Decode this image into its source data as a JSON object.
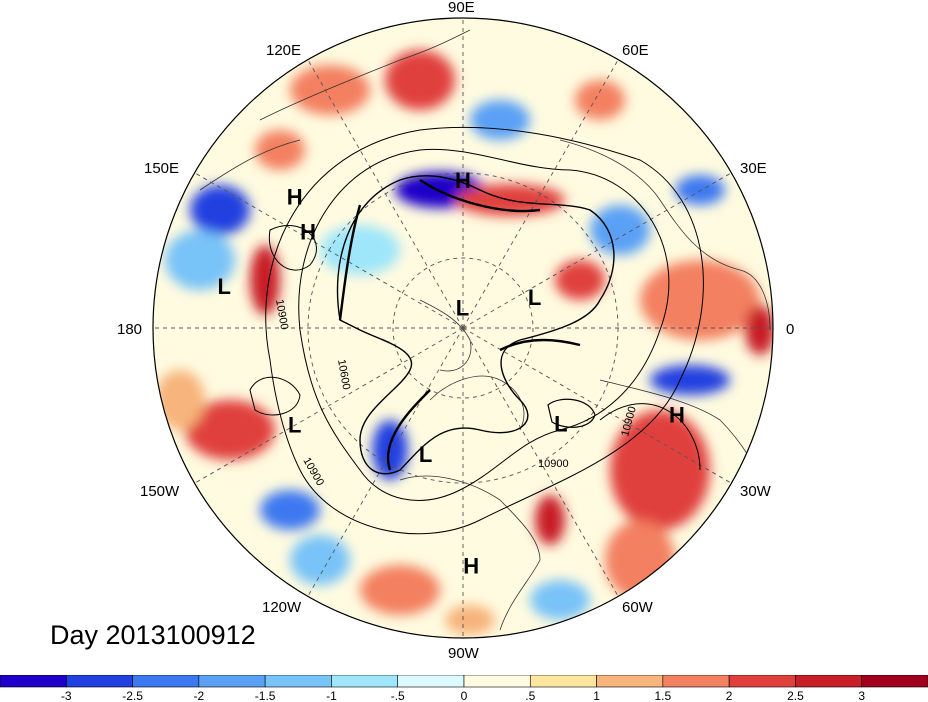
{
  "title": "Day 2013100912",
  "longitude_labels": {
    "lon_90e": "90E",
    "lon_60e": "60E",
    "lon_30e": "30E",
    "lon_0": "0",
    "lon_30w": "30W",
    "lon_60w": "60W",
    "lon_90w": "90W",
    "lon_120w": "120W",
    "lon_150w": "150W",
    "lon_180": "180",
    "lon_150e": "150E",
    "lon_120e": "120E"
  },
  "pressure_centers": [
    {
      "type": "H",
      "lon": 90,
      "lat": 47
    },
    {
      "type": "H",
      "lon": 142,
      "lat": 28
    },
    {
      "type": "H",
      "lon": 148,
      "lat": 37
    },
    {
      "type": "L",
      "lon": 170,
      "lat": 20
    },
    {
      "type": "L",
      "lon": 88,
      "lat": 84
    },
    {
      "type": "L",
      "lon": 23,
      "lat": 67
    },
    {
      "type": "L",
      "lon": -150,
      "lat": 34
    },
    {
      "type": "L",
      "lon": -106,
      "lat": 52
    },
    {
      "type": "L",
      "lon": -44,
      "lat": 50
    },
    {
      "type": "H",
      "lon": -22,
      "lat": 23
    },
    {
      "type": "H",
      "lon": -88,
      "lat": 21
    }
  ],
  "contour_labels": [
    "10600",
    "10900",
    "10900",
    "10900",
    "10900"
  ],
  "colorbar": {
    "ticks": [
      "-3",
      "-2.5",
      "-2",
      "-1.5",
      "-1",
      "-.5",
      "0",
      ".5",
      "1",
      "1.5",
      "2",
      "2.5",
      "3"
    ],
    "colors": [
      "#1e00c8",
      "#2040e0",
      "#3c78f0",
      "#5aa0f5",
      "#78c3f8",
      "#9fe6fa",
      "#dcfaff",
      "#fffbe0",
      "#ffe6a0",
      "#f7b47c",
      "#f38060",
      "#e0403c",
      "#c81e28",
      "#a0001e"
    ]
  }
}
